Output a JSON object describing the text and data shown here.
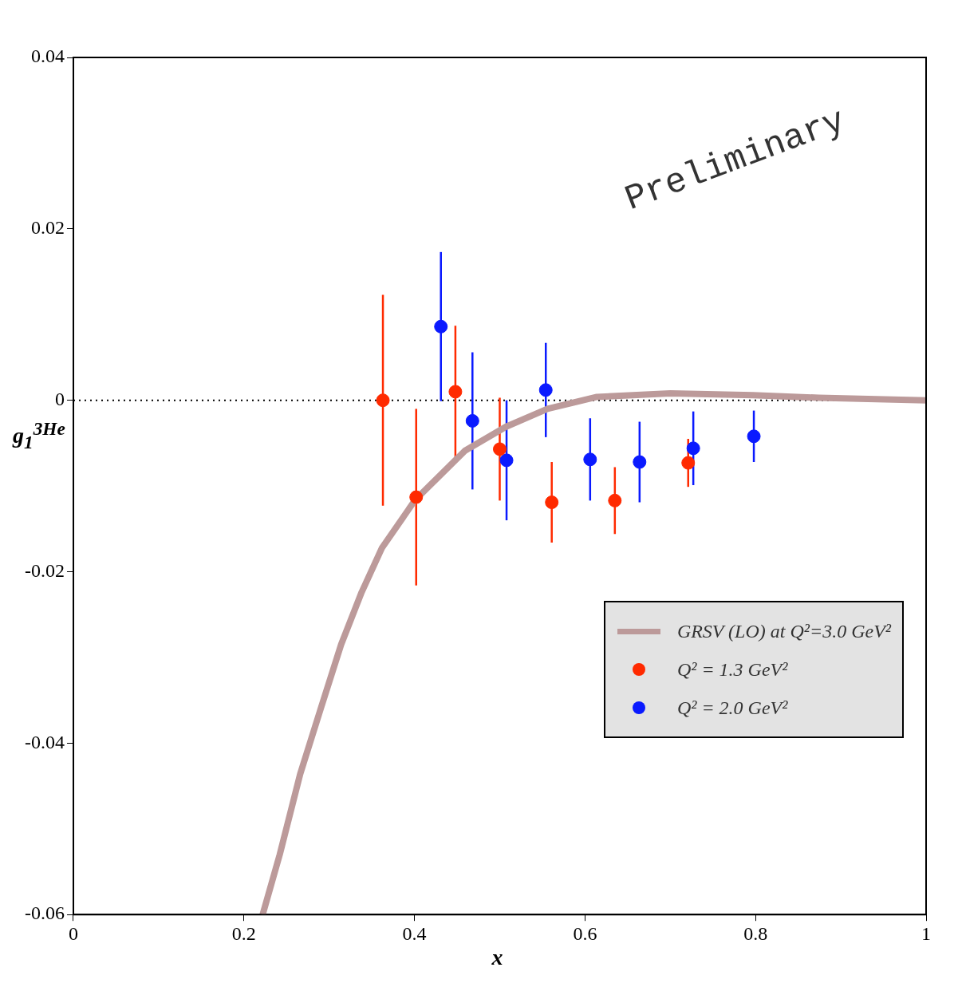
{
  "chart_data": {
    "type": "scatter",
    "xlabel": "x",
    "ylabel": "g$_{1}$$^{3He}$",
    "xlim": [
      0,
      1
    ],
    "xticks": [
      0,
      0.2,
      0.4,
      0.6,
      0.8,
      1
    ],
    "ylim": [
      -0.06,
      0.04
    ],
    "yticks": [
      -0.06,
      -0.04,
      -0.02,
      0,
      0.02,
      0.04
    ],
    "grid": false,
    "legend": "bottom right",
    "marker": "circle",
    "ref_lines": [
      {
        "axis": "y",
        "value": 0,
        "color": "#000000",
        "line_style": "dotted"
      }
    ],
    "annotations": [
      "Preliminary"
    ],
    "series": [
      {
        "name": "GRSV (LO) at Q²=3.0 GeV²",
        "type": "line",
        "color": "#bc9a9a",
        "marker": "none",
        "x": [
          0.222,
          0.242,
          0.266,
          0.29,
          0.314,
          0.338,
          0.362,
          0.401,
          0.459,
          0.507,
          0.556,
          0.614,
          0.7,
          0.797,
          0.874,
          1.0
        ],
        "values": [
          -0.06,
          -0.053,
          -0.0436,
          -0.036,
          -0.0285,
          -0.0224,
          -0.0172,
          -0.0116,
          -0.0059,
          -0.0031,
          -0.001,
          0.0004,
          0.0008,
          0.0006,
          0.0003,
          0.0
        ]
      },
      {
        "name": "Q² = 1.3 GeV²",
        "color": "#ff2a00",
        "x": [
          0.363,
          0.402,
          0.448,
          0.5,
          0.561,
          0.635,
          0.721
        ],
        "values": [
          0.0,
          -0.0113,
          0.001,
          -0.0057,
          -0.0119,
          -0.0117,
          -0.0073
        ],
        "errors": [
          0.0123,
          0.0103,
          0.0077,
          0.006,
          0.0047,
          0.0039,
          0.0028
        ]
      },
      {
        "name": "Q² = 2.0 GeV²",
        "color": "#0a1aff",
        "x": [
          0.431,
          0.468,
          0.508,
          0.554,
          0.606,
          0.664,
          0.727,
          0.798
        ],
        "values": [
          0.0086,
          -0.0024,
          -0.007,
          0.0012,
          -0.0069,
          -0.0072,
          -0.0056,
          -0.0042
        ],
        "errors": [
          0.0087,
          0.008,
          0.007,
          0.0055,
          0.0048,
          0.0047,
          0.0043,
          0.003
        ]
      }
    ]
  }
}
